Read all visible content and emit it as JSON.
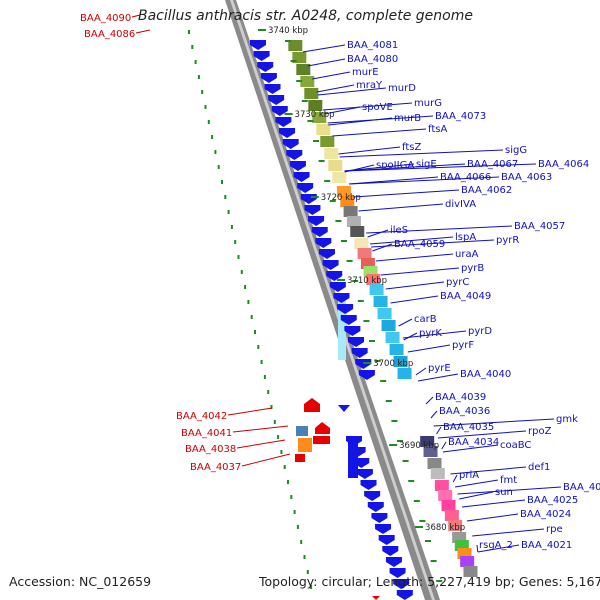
{
  "title": "Bacillus anthracis str. A0248, complete genome",
  "footer": {
    "accession": "Accession: NC_012659",
    "topology": "Topology: circular; Length: 5,227,419 bp; Genes: 5,167"
  },
  "colors": {
    "forward_gene": "#1414e6",
    "reverse_gene": "#e60000",
    "blue_label": "#1010c0",
    "red_label": "#cc0000",
    "tick_green": "#1e8c1e"
  },
  "kbp_labels": [
    "3740 kbp",
    "3730 kbp",
    "3720 kbp",
    "3710 kbp",
    "3700 kbp",
    "3690 kbp",
    "3680 kbp"
  ],
  "right_labels": [
    "BAA_4081",
    "BAA_4080",
    "murE",
    "mraY",
    "murD",
    "spoVE",
    "murG",
    "murB",
    "BAA_4073",
    "ftsA",
    "ftsZ",
    "sigG",
    "spoIIGA",
    "sigE",
    "BAA_4067",
    "BAA_4064",
    "BAA_4066",
    "BAA_4063",
    "BAA_4062",
    "divIVA",
    "BAA_4057",
    "ileS",
    "lspA",
    "pyrR",
    "BAA_4059",
    "uraA",
    "pyrB",
    "pyrC",
    "BAA_4049",
    "carB",
    "pyrD",
    "pyrK",
    "pyrF",
    "pyrE",
    "BAA_4040",
    "BAA_4039",
    "BAA_4036",
    "gmk",
    "BAA_4035",
    "rpoZ",
    "BAA_4034",
    "coaBC",
    "def1",
    "priA",
    "fmt",
    "BAA_4026",
    "sun",
    "BAA_4025",
    "BAA_4024",
    "rpe",
    "rsgA_2",
    "BAA_4021"
  ],
  "left_labels": [
    "BAA_4090",
    "BAA_4086",
    "BAA_4042",
    "BAA_4041",
    "BAA_4038",
    "BAA_4037"
  ]
}
